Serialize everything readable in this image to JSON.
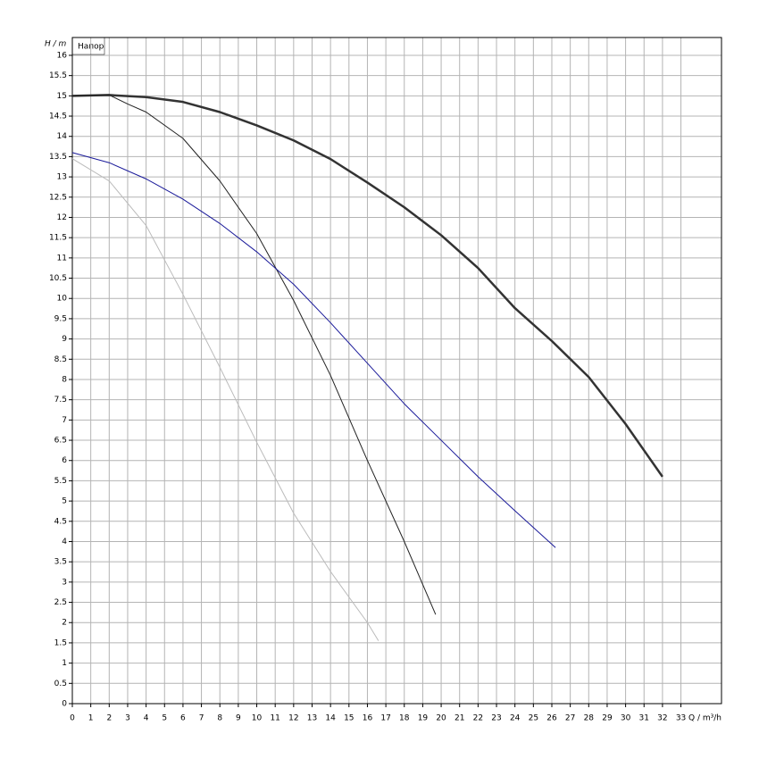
{
  "chart_data": {
    "type": "line",
    "plot_label": "Напор",
    "y_axis_label": "H / m",
    "x_axis_label": "Q / m³/h",
    "xlim": [
      0,
      35.2
    ],
    "xticks": [
      0,
      1,
      2,
      3,
      4,
      5,
      6,
      7,
      8,
      9,
      10,
      11,
      12,
      13,
      14,
      15,
      16,
      17,
      18,
      19,
      20,
      21,
      22,
      23,
      24,
      25,
      26,
      27,
      28,
      29,
      30,
      31,
      32,
      33
    ],
    "ylim": [
      0,
      16.44
    ],
    "yticks": [
      0,
      0.5,
      1,
      1.5,
      2,
      2.5,
      3,
      3.5,
      4,
      4.5,
      5,
      5.5,
      6,
      6.5,
      7,
      7.5,
      8,
      8.5,
      9,
      9.5,
      10,
      10.5,
      11,
      11.5,
      12,
      12.5,
      13,
      13.5,
      14,
      14.5,
      15,
      15.5,
      16
    ],
    "grid": true,
    "series": [
      {
        "color": "#333333",
        "width": 2.5,
        "x": [
          0,
          2,
          4,
          6,
          8,
          10,
          12,
          14,
          16,
          18,
          20,
          22,
          24,
          26,
          28,
          30,
          32
        ],
        "values": [
          15,
          15.02,
          14.97,
          14.85,
          14.6,
          14.27,
          13.9,
          13.44,
          12.86,
          12.25,
          11.56,
          10.75,
          9.76,
          8.95,
          8.06,
          6.9,
          5.6
        ]
      },
      {
        "color": "#222222",
        "width": 1,
        "x": [
          0,
          2,
          3,
          4,
          6,
          8,
          10,
          12,
          14,
          16,
          18,
          19.7
        ],
        "values": [
          15,
          15.02,
          14.8,
          14.6,
          13.95,
          12.9,
          11.6,
          9.95,
          8.1,
          6.0,
          4.0,
          2.2
        ]
      },
      {
        "color": "#1a1a9a",
        "width": 1,
        "x": [
          0,
          2,
          4,
          6,
          8,
          10,
          12,
          14,
          16,
          18,
          20,
          22,
          24,
          26.2
        ],
        "values": [
          13.6,
          13.35,
          12.95,
          12.45,
          11.85,
          11.15,
          10.35,
          9.4,
          8.4,
          7.4,
          6.5,
          5.6,
          4.76,
          3.85
        ]
      },
      {
        "color": "#bbbbbb",
        "width": 1,
        "x": [
          0,
          2,
          4,
          6,
          8,
          10,
          12,
          14,
          16,
          16.6
        ],
        "values": [
          13.45,
          12.9,
          11.8,
          10.1,
          8.3,
          6.45,
          4.7,
          3.26,
          2.0,
          1.55
        ]
      }
    ]
  }
}
